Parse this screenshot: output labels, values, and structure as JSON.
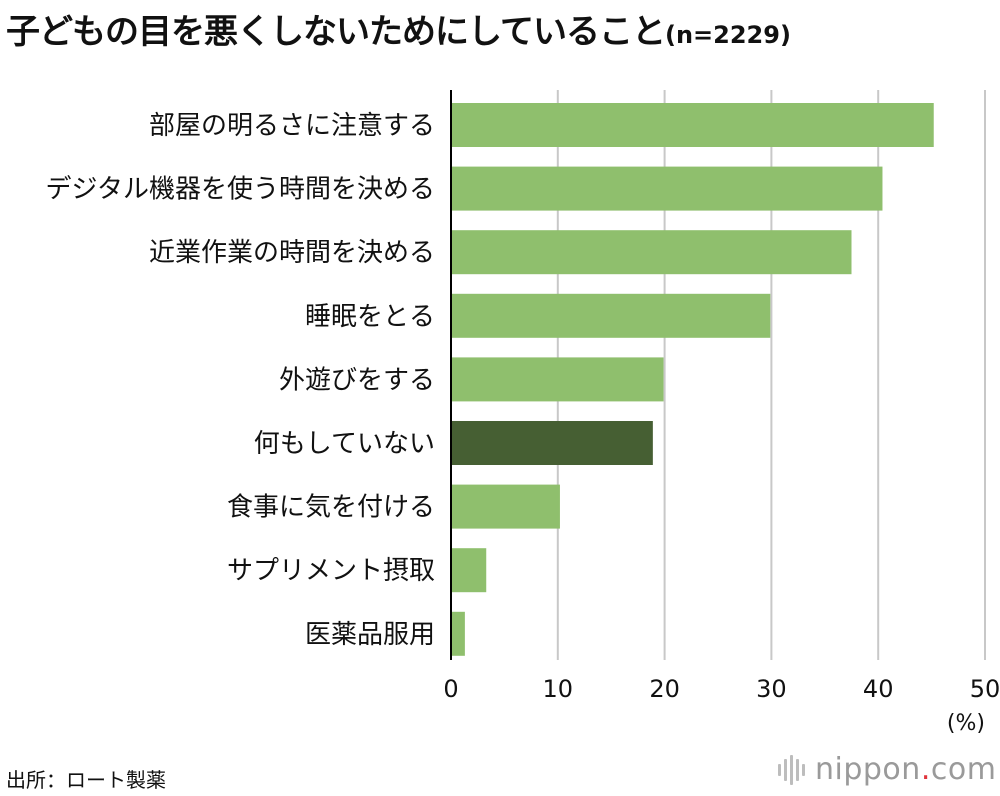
{
  "title": {
    "main": "子どもの目を悪くしないためにしていること",
    "sample": "(n=2229)"
  },
  "source": "出所：ロート製薬",
  "logo": {
    "name": "nippon",
    "dot": ".",
    "domain": "com"
  },
  "colors": {
    "bar": "#8fbf6d",
    "highlight": "#465f33",
    "grid": "#c8c8c8",
    "text": "#111111"
  },
  "chart_data": {
    "type": "bar",
    "orientation": "horizontal",
    "categories": [
      "部屋の明るさに注意する",
      "デジタル機器を使う時間を決める",
      "近業作業の時間を決める",
      "睡眠をとる",
      "外遊びをする",
      "何もしていない",
      "食事に気を付ける",
      "サプリメント摂取",
      "医薬品服用"
    ],
    "values": [
      45.2,
      40.4,
      37.5,
      29.9,
      19.9,
      18.9,
      10.2,
      3.3,
      1.3
    ],
    "highlight_index": 5,
    "xlim": [
      0,
      50
    ],
    "xticks": [
      "0",
      "10",
      "20",
      "30",
      "40",
      "50"
    ],
    "unit_label": "(%)",
    "grid": true
  }
}
